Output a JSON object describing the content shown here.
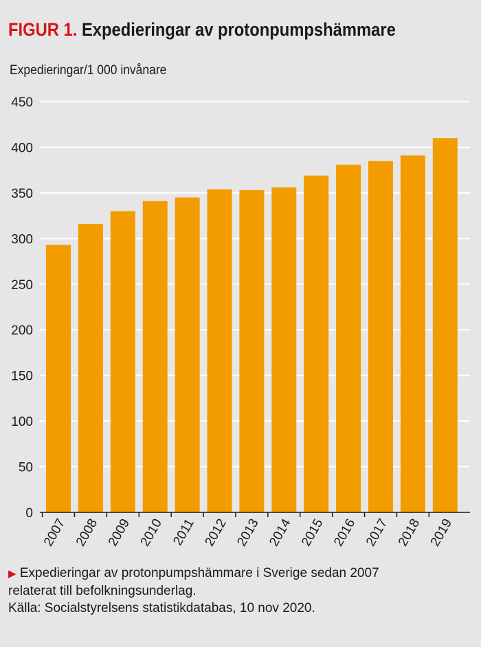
{
  "title": {
    "figure": "FIGUR 1.",
    "text": "Expedieringar av protonpumpshämmare"
  },
  "caption": {
    "line1": "Expedieringar av protonpumpshämmare i Sverige sedan 2007",
    "line2": "relaterat till befolkningsunderlag.",
    "source": "Källa: Socialstyrelsens statistikdatabas, 10 nov 2020."
  },
  "colors": {
    "bar": "#f39c00",
    "accent": "#d7141a",
    "grid": "#ffffff"
  },
  "chart_data": {
    "type": "bar",
    "title": "Expedieringar av protonpumpshämmare",
    "ylabel": "Expedieringar/1 000 invånare",
    "xlabel": "",
    "categories": [
      "2007",
      "2008",
      "2009",
      "2010",
      "2011",
      "2012",
      "2013",
      "2014",
      "2015",
      "2016",
      "2017",
      "2018",
      "2019"
    ],
    "values": [
      293,
      316,
      330,
      341,
      345,
      354,
      353,
      356,
      369,
      381,
      385,
      391,
      410
    ],
    "ylim": [
      0,
      450
    ],
    "yticks": [
      0,
      50,
      100,
      150,
      200,
      250,
      300,
      350,
      400,
      450
    ],
    "grid": true
  }
}
